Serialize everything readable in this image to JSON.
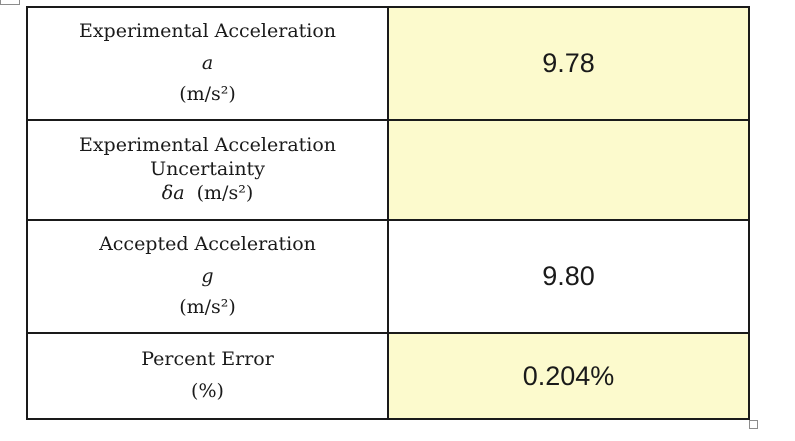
{
  "colors": {
    "highlight": "#fcfacd",
    "border": "#1a1a1a"
  },
  "rows": [
    {
      "label_line1": "Experimental Acceleration",
      "symbol": "a",
      "unit": "(m/s²)",
      "value": "9.78"
    },
    {
      "label_line1": "Experimental Acceleration",
      "label_line2": "Uncertainty",
      "symbol": "δa",
      "unit": "(m/s²)",
      "value": ""
    },
    {
      "label_line1": "Accepted Acceleration",
      "symbol": "g",
      "unit": "(m/s²)",
      "value": "9.80"
    },
    {
      "label_line1": "Percent Error",
      "unit": "(%)",
      "value": "0.204%"
    }
  ]
}
